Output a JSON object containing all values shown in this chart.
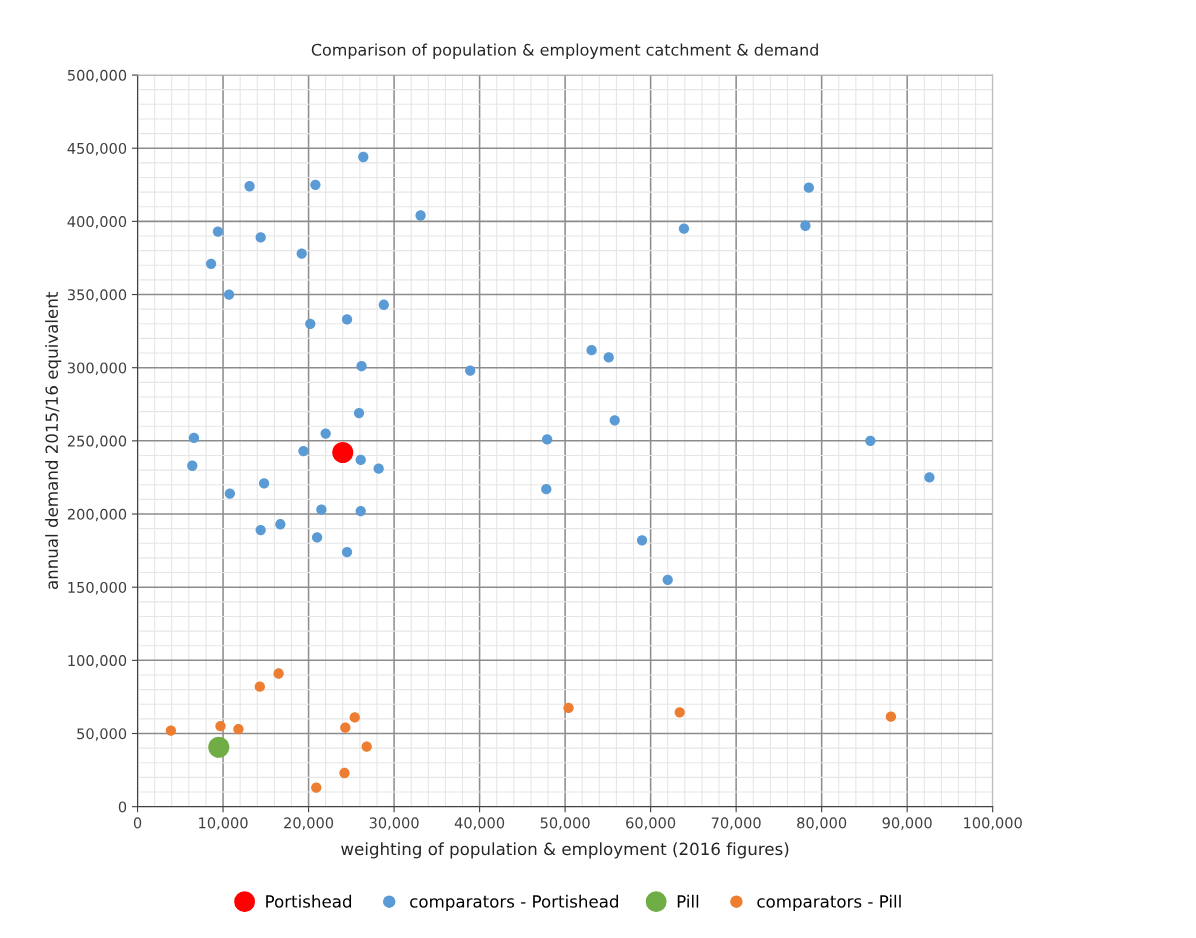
{
  "chart_data": {
    "type": "scatter",
    "title": "Comparison of population & employment catchment & demand",
    "xlabel": "weighting of population & employment (2016 figures)",
    "ylabel": "annual demand 2015/16 equivalent",
    "xlim": [
      0,
      100000
    ],
    "ylim": [
      0,
      500000
    ],
    "xticks": [
      0,
      {
        "value": 10000,
        "label": "10,000"
      },
      {
        "value": 20000,
        "label": "20,000"
      },
      {
        "value": 30000,
        "label": "30,000"
      },
      {
        "value": 40000,
        "label": "40,000"
      },
      {
        "value": 50000,
        "label": "50,000"
      },
      {
        "value": 60000,
        "label": "60,000"
      },
      {
        "value": 70000,
        "label": "70,000"
      },
      {
        "value": 80000,
        "label": "80,000"
      },
      {
        "value": 90000,
        "label": "90,000"
      },
      {
        "value": 100000,
        "label": "100,000"
      }
    ],
    "yticks": [
      0,
      {
        "value": 50000,
        "label": "50,000"
      },
      {
        "value": 100000,
        "label": "100,000"
      },
      {
        "value": 150000,
        "label": "150,000"
      },
      {
        "value": 200000,
        "label": "200,000"
      },
      {
        "value": 250000,
        "label": "250,000"
      },
      {
        "value": 300000,
        "label": "300,000"
      },
      {
        "value": 350000,
        "label": "350,000"
      },
      {
        "value": 400000,
        "label": "400,000"
      },
      {
        "value": 450000,
        "label": "450,000"
      },
      {
        "value": 500000,
        "label": "500,000"
      }
    ],
    "grid": true,
    "legend": "bottom",
    "marker": "circle",
    "series": [
      {
        "name": "Portishead",
        "color": "#ff0000",
        "x": [
          24000
        ],
        "values": [
          242000
        ]
      },
      {
        "name": "comparators - Portishead",
        "color": "#5b9bd5",
        "x": [
          26400,
          13100,
          20800,
          33100,
          9400,
          14400,
          19200,
          8600,
          10700,
          20200,
          24500,
          28800,
          26200,
          38900,
          25900,
          22000,
          6600,
          47900,
          78500,
          78100,
          63900,
          53100,
          55100,
          55800,
          85700,
          19400,
          26100,
          28200,
          6400,
          14800,
          10800,
          21500,
          26100,
          14400,
          16700,
          21000,
          24500,
          47800,
          92600,
          59000,
          62000
        ],
        "values": [
          444000,
          424000,
          425000,
          404000,
          393000,
          389000,
          378000,
          371000,
          350000,
          330000,
          333000,
          343000,
          301000,
          298000,
          269000,
          255000,
          252000,
          251000,
          423000,
          397000,
          395000,
          312000,
          307000,
          264000,
          250000,
          243000,
          237000,
          231000,
          233000,
          221000,
          214000,
          203000,
          202000,
          189000,
          193000,
          184000,
          174000,
          217000,
          225000,
          182000,
          155000
        ]
      },
      {
        "name": "Pill",
        "color": "#70ad47",
        "x": [
          9500
        ],
        "values": [
          40600
        ]
      },
      {
        "name": "comparators - Pill",
        "color": "#ed7d31",
        "x": [
          16500,
          14300,
          3900,
          9700,
          11800,
          25400,
          24300,
          26800,
          24200,
          20900,
          50400,
          63400,
          88100
        ],
        "values": [
          91000,
          82000,
          52000,
          55000,
          53000,
          61000,
          54000,
          41000,
          23000,
          13000,
          67500,
          64500,
          61500
        ]
      }
    ]
  }
}
